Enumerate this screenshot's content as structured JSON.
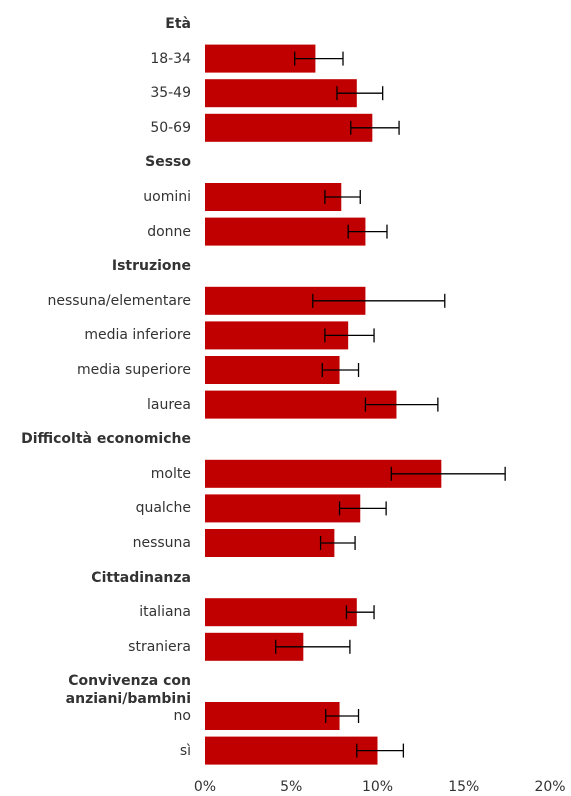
{
  "chart_data": {
    "type": "bar",
    "orientation": "horizontal",
    "color": "#c00000",
    "error_color": "#000000",
    "xlim": [
      0,
      20
    ],
    "xticks": [
      {
        "value": 0,
        "label": "0%"
      },
      {
        "value": 5,
        "label": "5%"
      },
      {
        "value": 10,
        "label": "10%"
      },
      {
        "value": 15,
        "label": "15%"
      },
      {
        "value": 20,
        "label": "20%"
      }
    ],
    "grid": false,
    "groups": [
      {
        "name": "Età",
        "categories": [
          "18-34",
          "35-49",
          "50-69"
        ],
        "values": [
          6.4,
          8.8,
          9.7
        ],
        "lower": [
          5.2,
          7.65,
          8.45
        ],
        "upper": [
          8.0,
          10.3,
          11.25
        ]
      },
      {
        "name": "Sesso",
        "categories": [
          "uomini",
          "donne"
        ],
        "values": [
          7.9,
          9.3
        ],
        "lower": [
          6.95,
          8.3
        ],
        "upper": [
          9.0,
          10.55
        ]
      },
      {
        "name": "Istruzione",
        "categories": [
          "nessuna/elementare",
          "media inferiore",
          "media superiore",
          "laurea"
        ],
        "values": [
          9.3,
          8.3,
          7.8,
          11.1
        ],
        "lower": [
          6.25,
          6.95,
          6.8,
          9.3
        ],
        "upper": [
          13.9,
          9.8,
          8.9,
          13.5
        ]
      },
      {
        "name": "Difficoltà economiche",
        "categories": [
          "molte",
          "qualche",
          "nessuna"
        ],
        "values": [
          13.7,
          9.0,
          7.5
        ],
        "lower": [
          10.8,
          7.8,
          6.7
        ],
        "upper": [
          17.4,
          10.5,
          8.7
        ]
      },
      {
        "name": "Cittadinanza",
        "categories": [
          "italiana",
          "straniera"
        ],
        "values": [
          8.8,
          5.7
        ],
        "lower": [
          8.2,
          4.1
        ],
        "upper": [
          9.8,
          8.4
        ]
      },
      {
        "name": "Convivenza con anziani/bambini",
        "categories": [
          "no",
          "sì"
        ],
        "values": [
          7.8,
          10.0
        ],
        "lower": [
          7.0,
          8.8
        ],
        "upper": [
          8.9,
          11.5
        ]
      }
    ]
  }
}
